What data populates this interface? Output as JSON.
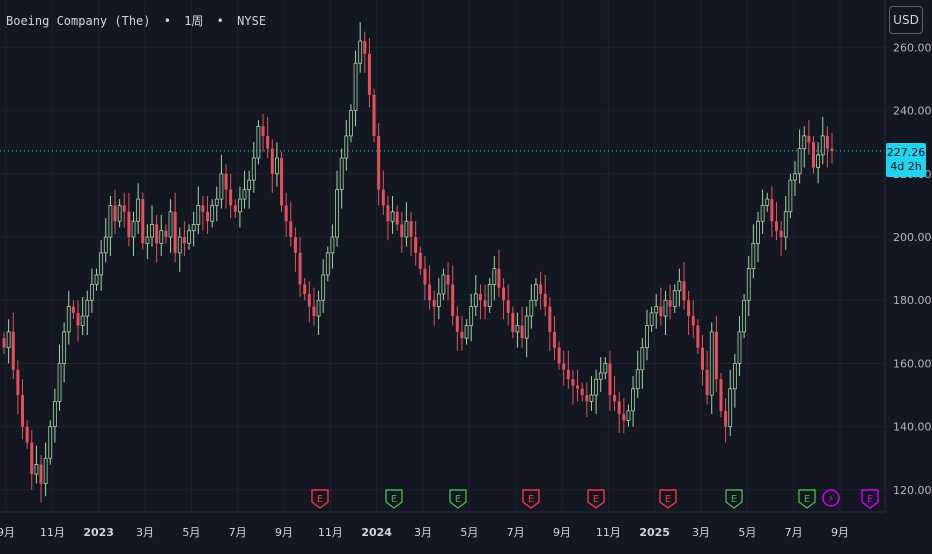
{
  "header": {
    "symbol_name": "Boeing Company (The)",
    "interval": "1周",
    "exchange": "NYSE",
    "separator": "•"
  },
  "currency_button": {
    "label": "USD"
  },
  "last_price": {
    "value": "227.26",
    "countdown": "4d 2h",
    "color": "#22d3ee"
  },
  "colors": {
    "up": "#4caf50",
    "down": "#f23645",
    "up_body": "#a5d6a7",
    "down_body": "#e2525d",
    "earnings": "#f23645",
    "earnings_up": "#26a69a",
    "dividend": "#d500f9"
  },
  "chart_data": {
    "type": "candlestick",
    "title": "Boeing Company (The) • 1周 • NYSE",
    "ylabel": "",
    "xlabel": "",
    "y_ticks": [
      120,
      140,
      160,
      180,
      200,
      220,
      240,
      260
    ],
    "y_tick_labels": [
      "120.00",
      "140.00",
      "160.00",
      "180.00",
      "200.00",
      "220.00",
      "240.00",
      "260.00"
    ],
    "ylim": [
      113,
      275
    ],
    "x_tick_labels": [
      "9月",
      "11月",
      "2023",
      "3月",
      "5月",
      "7月",
      "9月",
      "11月",
      "2024",
      "3月",
      "5月",
      "7月",
      "9月",
      "11月",
      "2025",
      "3月",
      "5月",
      "7月",
      "9月"
    ],
    "grid": true,
    "last_price_line": 227.26,
    "events": [
      {
        "type": "earnings",
        "label": "E",
        "color": "down"
      },
      {
        "type": "earnings",
        "label": "E",
        "color": "up"
      },
      {
        "type": "earnings",
        "label": "E",
        "color": "up"
      },
      {
        "type": "earnings",
        "label": "E",
        "color": "down"
      },
      {
        "type": "earnings",
        "label": "E",
        "color": "down"
      },
      {
        "type": "earnings",
        "label": "E",
        "color": "down"
      },
      {
        "type": "earnings",
        "label": "E",
        "color": "up"
      },
      {
        "type": "earnings",
        "label": "E",
        "color": "up"
      },
      {
        "type": "dividend",
        "label": "⚡",
        "color": "dividend"
      },
      {
        "type": "earnings-upcoming",
        "label": "E",
        "color": "dividend"
      }
    ],
    "closes": [
      165,
      170,
      158,
      150,
      140,
      135,
      125,
      128,
      122,
      130,
      140,
      148,
      160,
      170,
      178,
      176,
      172,
      175,
      180,
      185,
      188,
      195,
      200,
      210,
      205,
      210,
      208,
      200,
      205,
      212,
      198,
      200,
      204,
      198,
      202,
      200,
      208,
      195,
      200,
      198,
      202,
      204,
      210,
      208,
      205,
      210,
      212,
      220,
      215,
      210,
      208,
      212,
      215,
      218,
      225,
      235,
      232,
      228,
      220,
      225,
      210,
      205,
      200,
      195,
      185,
      182,
      178,
      175,
      180,
      188,
      195,
      200,
      215,
      225,
      232,
      240,
      255,
      262,
      258,
      245,
      232,
      215,
      210,
      205,
      208,
      204,
      200,
      205,
      200,
      195,
      190,
      185,
      180,
      178,
      182,
      188,
      185,
      175,
      170,
      168,
      172,
      178,
      182,
      180,
      178,
      185,
      190,
      184,
      180,
      176,
      170,
      172,
      168,
      175,
      180,
      185,
      182,
      178,
      170,
      165,
      160,
      158,
      155,
      153,
      152,
      150,
      148,
      150,
      155,
      157,
      160,
      150,
      148,
      144,
      142,
      145,
      152,
      158,
      165,
      172,
      176,
      178,
      175,
      180,
      178,
      183,
      186,
      180,
      175,
      172,
      165,
      158,
      150,
      170,
      155,
      145,
      140,
      152,
      160,
      170,
      180,
      190,
      198,
      205,
      210,
      212,
      205,
      202,
      200,
      208,
      218,
      220,
      228,
      232,
      230,
      222,
      226,
      232,
      228,
      227.26
    ]
  }
}
